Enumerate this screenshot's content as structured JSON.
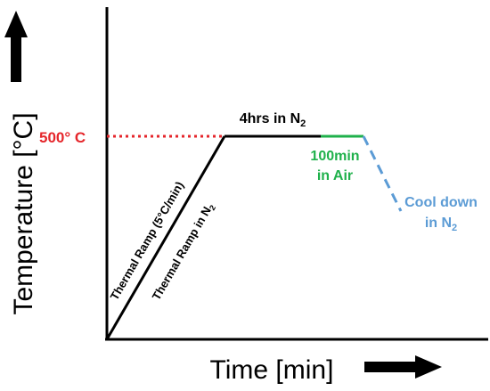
{
  "diagram": {
    "y_axis_label": "Temperature [°C]",
    "x_axis_label": "Time [min]",
    "level_label": "500° C",
    "step_hold_n2": {
      "text": "4hrs in N",
      "sub": "2"
    },
    "step_ramp_rate": "Thermal Ramp (5°C/min)",
    "step_ramp_n2": {
      "text": "Thermal Ramp in N",
      "sub": "2"
    },
    "step_air_line1": "100min",
    "step_air_line2": "in Air",
    "step_cool_line1": "Cool down",
    "step_cool_line2": {
      "text": "in N",
      "sub": "2"
    }
  },
  "colors": {
    "axis": "#000000",
    "profile": "#000000",
    "level_guide": "#e5262b",
    "air": "#1fb14b",
    "cool": "#5b9bd5",
    "level_text": "#e5262b"
  }
}
